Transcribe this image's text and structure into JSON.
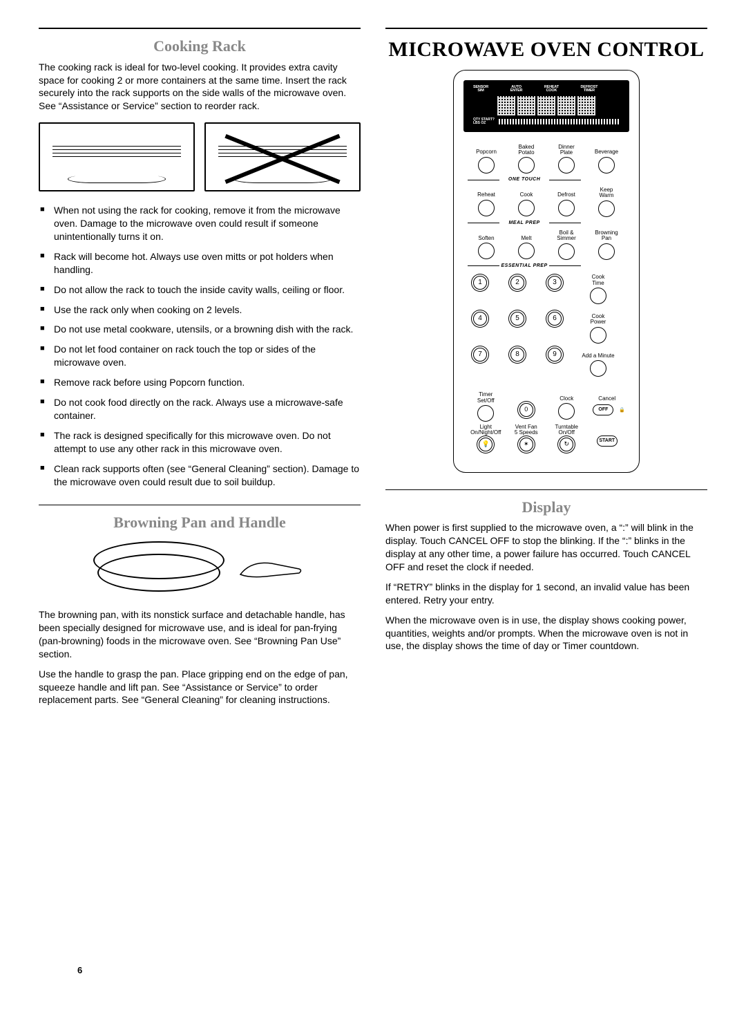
{
  "page_number": "6",
  "left": {
    "cooking_rack": {
      "heading": "Cooking Rack",
      "intro": "The cooking rack is ideal for two-level cooking. It provides extra cavity space for cooking 2 or more containers at the same time. Insert the rack securely into the rack supports on the side walls of the microwave oven. See “Assistance or Service” section to reorder rack.",
      "bullets": [
        "When not using the rack for cooking, remove it from the microwave oven. Damage to the microwave oven could result if someone unintentionally turns it on.",
        "Rack will become hot. Always use oven mitts or pot holders when handling.",
        "Do not allow the rack to touch the inside cavity walls, ceiling or floor.",
        "Use the rack only when cooking on 2 levels.",
        "Do not use metal cookware, utensils, or a browning dish with the rack.",
        "Do not let food container on rack touch the top or sides of the microwave oven.",
        "Remove rack before using Popcorn function.",
        "Do not cook food directly on the rack. Always use a microwave-safe container.",
        "The rack is designed specifically for this microwave oven. Do not attempt to use any other rack in this microwave oven.",
        "Clean rack supports often (see “General Cleaning” section). Damage to the microwave oven could result due to soil buildup."
      ]
    },
    "browning": {
      "heading": "Browning Pan and Handle",
      "p1": "The browning pan, with its nonstick surface and detachable handle, has been specially designed for microwave use, and is ideal for pan-frying (pan-browning) foods in the microwave oven. See “Browning Pan Use” section.",
      "p2": "Use the handle to grasp the pan. Place gripping end on the edge of pan, squeeze handle and lift pan. See “Assistance or Service” to order replacement parts. See “General Cleaning” for cleaning instructions."
    }
  },
  "right": {
    "title": "MICROWAVE OVEN CONTROL",
    "display_top_labels": [
      "SENSOR\nSIM",
      "AUTO\nENTER",
      "REHEAT\nCOOK",
      "DEFROST\nTIMER",
      ""
    ],
    "display_bot_left": "QTY  START?\nLBS  OZ",
    "pwr_label": "PWR",
    "one_touch": {
      "section_label": "ONE TOUCH",
      "row": [
        "Popcorn",
        "Baked\nPotato",
        "Dinner\nPlate",
        "Beverage"
      ]
    },
    "meal_prep": {
      "section_label": "MEAL PREP",
      "row": [
        "Reheat",
        "Cook",
        "Defrost",
        "Keep\nWarm"
      ]
    },
    "essential_prep": {
      "section_label": "ESSENTIAL PREP",
      "row": [
        "Soften",
        "Melt",
        "Boil &\nSimmer",
        "Browning\nPan"
      ]
    },
    "keypad": [
      "1",
      "2",
      "3",
      "4",
      "5",
      "6",
      "7",
      "8",
      "9",
      "0"
    ],
    "side_buttons": [
      "Cook\nTime",
      "Cook\nPower",
      "Add a Minute"
    ],
    "lower_row1": [
      "Timer\nSet/Off",
      "",
      "Clock",
      "Cancel"
    ],
    "lower_row2": [
      "Light\nOn/Night/Off",
      "Vent Fan\n5 Speeds",
      "Turntable\nOn/Off",
      ""
    ],
    "off_label": "OFF",
    "start_label": "START",
    "display_section": {
      "heading": "Display",
      "p1": "When power is first supplied to the microwave oven, a “:” will blink in the display. Touch CANCEL OFF to stop the blinking. If the “:” blinks in the display at any other time, a power failure has occurred. Touch CANCEL OFF and reset the clock if needed.",
      "p2": "If “RETRY” blinks in the display for 1 second, an invalid value has been entered. Retry your entry.",
      "p3": "When the microwave oven is in use, the display shows cooking power, quantities, weights and/or prompts. When the microwave oven is not in use, the display shows the time of day or Timer countdown."
    }
  }
}
